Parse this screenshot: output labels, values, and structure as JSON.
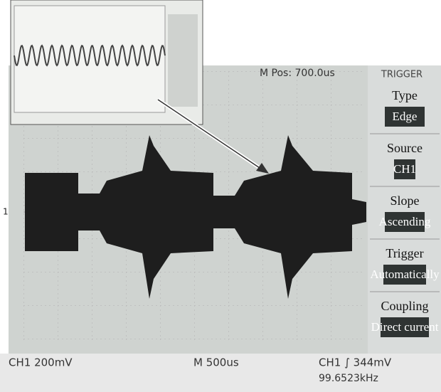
{
  "screen": {
    "position": "M Pos: 700.0us",
    "channel_scale": "CH1 200mV",
    "time_base": "M 500us",
    "trigger_level": "CH1 ∫ 344mV",
    "frequency": "99.6523kHz",
    "channel_marker": "1"
  },
  "menu": {
    "title": "TRIGGER",
    "items": [
      {
        "label": "Type",
        "value": "Edge"
      },
      {
        "label": "Source",
        "value": "CH1"
      },
      {
        "label": "Slope",
        "value": "Ascending"
      },
      {
        "label": "Trigger",
        "value": "Automatically"
      },
      {
        "label": "Coupling",
        "value": "Direct current"
      }
    ]
  }
}
